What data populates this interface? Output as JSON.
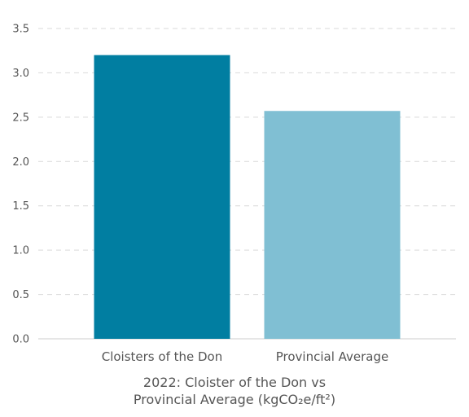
{
  "chart_data": {
    "type": "bar",
    "categories": [
      "Cloisters of the Don",
      "Provincial Average"
    ],
    "values": [
      3.2,
      2.57
    ],
    "colors": [
      "#017ea1",
      "#80bfd3"
    ],
    "title_line1": "2022: Cloister of the Don vs",
    "title_line2": "Provincial Average (kgCO₂e/ft²)",
    "xlabel": "",
    "ylabel": "",
    "ylim": [
      0,
      3.5
    ],
    "yticks": [
      "0.0",
      "0.5",
      "1.0",
      "1.5",
      "2.0",
      "2.5",
      "3.0",
      "3.5"
    ],
    "grid": true,
    "legend": "none"
  }
}
